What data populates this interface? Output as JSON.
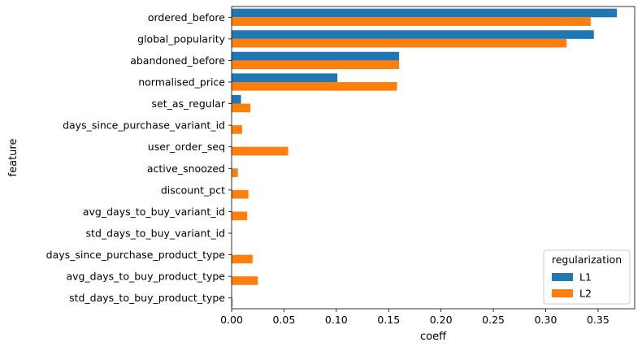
{
  "chart_data": {
    "type": "bar",
    "orientation": "horizontal",
    "xlabel": "coeff",
    "ylabel": "feature",
    "xlim": [
      0,
      0.385
    ],
    "xticks": [
      0.0,
      0.05,
      0.1,
      0.15,
      0.2,
      0.25,
      0.3,
      0.35
    ],
    "xtick_labels": [
      "0.00",
      "0.05",
      "0.10",
      "0.15",
      "0.20",
      "0.25",
      "0.30",
      "0.35"
    ],
    "categories": [
      "ordered_before",
      "global_popularity",
      "abandoned_before",
      "normalised_price",
      "set_as_regular",
      "days_since_purchase_variant_id",
      "user_order_seq",
      "active_snoozed",
      "discount_pct",
      "avg_days_to_buy_variant_id",
      "std_days_to_buy_variant_id",
      "days_since_purchase_product_type",
      "avg_days_to_buy_product_type",
      "std_days_to_buy_product_type"
    ],
    "series": [
      {
        "name": "L1",
        "color": "#1f77b4",
        "values": [
          0.368,
          0.346,
          0.16,
          0.101,
          0.009,
          0.0,
          0.0,
          0.0,
          0.0,
          0.0,
          0.0,
          0.0,
          0.0,
          0.0
        ]
      },
      {
        "name": "L2",
        "color": "#ff7f0e",
        "values": [
          0.343,
          0.32,
          0.16,
          0.158,
          0.018,
          0.01,
          0.054,
          0.006,
          0.016,
          0.015,
          0.0,
          0.02,
          0.025,
          0.001
        ]
      }
    ],
    "legend": {
      "title": "regularization",
      "placement": "lower-right"
    },
    "grid": false
  }
}
